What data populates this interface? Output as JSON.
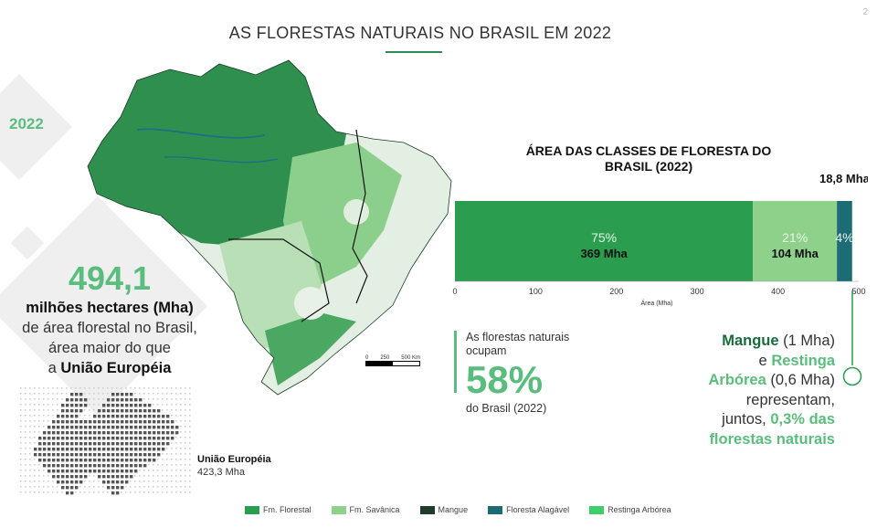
{
  "page": {
    "title": "AS FLORESTAS NATURAIS NO BRASIL EM 2022",
    "page_number": "2"
  },
  "colors": {
    "fm_florestal": "#2a9d4f",
    "fm_savanica": "#8ed18a",
    "mangue": "#1f3d2a",
    "floresta_alagavel": "#1d6b74",
    "restinga_arborea": "#3ecf6a",
    "accent": "#5bbd7d"
  },
  "left_panel": {
    "year": "2022",
    "area_value": "494,1",
    "line1": "milhões hectares (Mha)",
    "line2": "de área florestal no Brasil,",
    "line3": "área maior do que",
    "line4_prefix": "a",
    "line4_bold": "União Européia"
  },
  "map": {
    "scale_labels": [
      "0",
      "250",
      "500 Km"
    ]
  },
  "eu": {
    "name": "União Européia",
    "area": "423,3 Mha"
  },
  "chart_data": {
    "type": "bar",
    "orientation": "horizontal",
    "stacked": true,
    "title": "ÁREA DAS CLASSES DE FLORESTA DO BRASIL (2022)",
    "xlabel": "Área (Mha)",
    "xlim": [
      0,
      500
    ],
    "xticks": [
      "0",
      "100",
      "200",
      "300",
      "400",
      "500"
    ],
    "series": [
      {
        "name": "Fm. Florestal",
        "value": 369,
        "pct_label": "75%",
        "value_label": "369 Mha",
        "color": "#2a9d4f"
      },
      {
        "name": "Fm. Savânica",
        "value": 104,
        "pct_label": "21%",
        "value_label": "104 Mha",
        "color": "#8ed18a"
      },
      {
        "name": "Floresta Alagável",
        "value": 18.8,
        "pct_label": "4%",
        "value_label": "18,8 Mha",
        "color": "#1d6b74"
      }
    ],
    "legend": [
      "Fm. Florestal",
      "Fm. Savânica",
      "Mangue",
      "Floresta Alagável",
      "Restinga Arbórea"
    ]
  },
  "stat": {
    "line1": "As florestas naturais ocupam",
    "percent": "58%",
    "line2": "do Brasil (2022)"
  },
  "mangue_note": {
    "w1": "Mangue",
    "w2": "(1 Mha)",
    "w3": "e",
    "w4": "Restinga",
    "w5": "Arbórea",
    "w6": "(0,6 Mha)",
    "w7": "representam,",
    "w8": "juntos,",
    "w9": "0,3% das",
    "w10": "florestas naturais"
  },
  "legend": {
    "items": [
      "Fm. Florestal",
      "Fm. Savânica",
      "Mangue",
      "Floresta Alagável",
      "Restinga Arbórea"
    ]
  }
}
